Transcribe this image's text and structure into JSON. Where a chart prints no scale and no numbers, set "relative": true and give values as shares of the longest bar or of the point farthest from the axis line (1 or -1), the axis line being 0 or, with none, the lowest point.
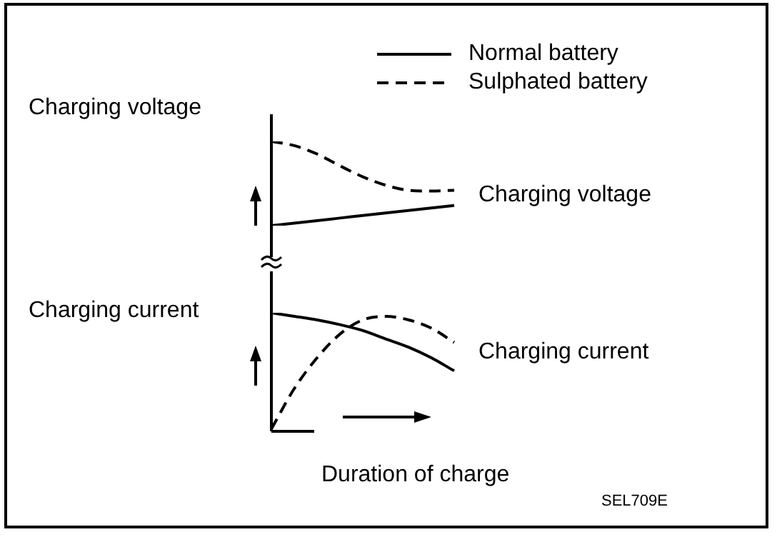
{
  "chart_data": [
    {
      "type": "line",
      "relative": true,
      "ylabel": "Charging voltage",
      "legend": "top right",
      "annotations": [
        "Charging voltage"
      ],
      "categories": [
        null,
        null,
        null,
        null,
        null,
        null,
        null,
        null,
        null
      ],
      "series": [
        {
          "name": "Normal battery",
          "color": "#000000",
          "line_style": "solid",
          "values": [
            0,
            0.03,
            0.06,
            0.09,
            0.12,
            0.15,
            0.18,
            0.21,
            0.24
          ]
        },
        {
          "name": "Sulphated battery",
          "color": "#000000",
          "line_style": "dashed",
          "values": [
            1,
            0.95,
            0.85,
            0.71,
            0.58,
            0.48,
            0.42,
            0.41,
            0.42
          ]
        }
      ]
    },
    {
      "type": "line",
      "relative": true,
      "ylabel": "Charging current",
      "xlabel": "Duration of charge",
      "annotations": [
        "Charging current",
        "SEL709E"
      ],
      "categories": [
        null,
        null,
        null,
        null,
        null,
        null,
        null,
        null,
        null
      ],
      "series": [
        {
          "color": "#000000",
          "line_style": "solid",
          "values": [
            1,
            0.97,
            0.94,
            0.9,
            0.85,
            0.78,
            0.71,
            0.62,
            0.51
          ]
        },
        {
          "color": "#000000",
          "line_style": "dashed",
          "values": [
            0.02,
            0.36,
            0.62,
            0.82,
            0.94,
            0.97,
            0.94,
            0.87,
            0.75
          ]
        }
      ]
    }
  ]
}
